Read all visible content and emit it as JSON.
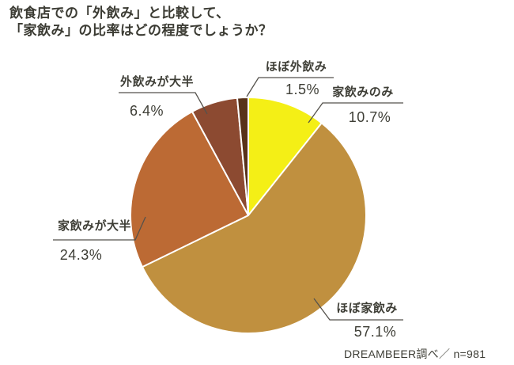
{
  "header": {
    "title_line1": "飲食店での「外飲み」と比較して、",
    "title_line2": "「家飲み」の比率はどの程度でしょうか？"
  },
  "footer": {
    "source": "DREAMBEER調べ／ n=981"
  },
  "chart_data": {
    "type": "pie",
    "title": "飲食店での「外飲み」と比較して、「家飲み」の比率はどの程度でしょうか？",
    "source_note": "DREAMBEER調べ／ n=981",
    "unit": "%",
    "n": 981,
    "start_angle_deg": 0,
    "direction": "clockwise",
    "legend_position": "around-slices",
    "slices": [
      {
        "id": "ienomi-nomi",
        "label": "家飲みのみ",
        "value": 10.7,
        "pct_label": "10.7%",
        "color": "#f4ef16"
      },
      {
        "id": "hobo-ienomi",
        "label": "ほぼ家飲み",
        "value": 57.1,
        "pct_label": "57.1%",
        "color": "#c0903f"
      },
      {
        "id": "ienomi-taihan",
        "label": "家飲みが大半",
        "value": 24.3,
        "pct_label": "24.3%",
        "color": "#bc6a34"
      },
      {
        "id": "sotonomi-taihan",
        "label": "外飲みが大半",
        "value": 6.4,
        "pct_label": "6.4%",
        "color": "#8c4a31"
      },
      {
        "id": "hobo-sotonomi",
        "label": "ほぼ外飲み",
        "value": 1.5,
        "pct_label": "1.5%",
        "color": "#58321a"
      }
    ],
    "slice_border_color": "#ffffff",
    "text_color": "#3e3e36",
    "leader_line_color": "#55524c"
  }
}
